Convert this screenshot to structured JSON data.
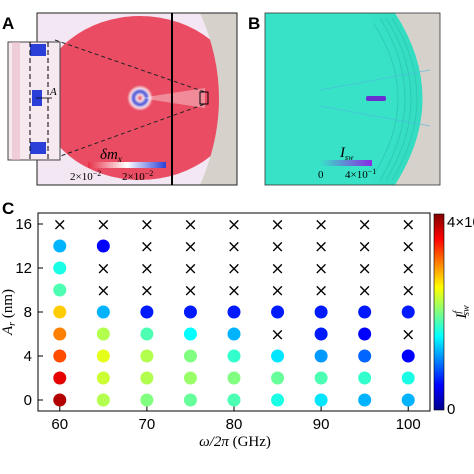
{
  "panels": {
    "a": {
      "label": "A",
      "inset_label": "A",
      "colorbar_title": "δm",
      "colorbar_title_sub": "x",
      "colorbar_min": "2×10",
      "colorbar_min_exp": "−2",
      "colorbar_max": "2×10",
      "colorbar_max_exp": "−2",
      "colors": {
        "negative": "#e8324a",
        "positive": "#2a3fd8",
        "background": "#f2e7f2",
        "dark": "#d6d2cb"
      }
    },
    "b": {
      "label": "B",
      "colorbar_title": "I",
      "colorbar_title_sub": "sw",
      "colorbar_min": "0",
      "colorbar_max": "4×10",
      "colorbar_max_exp": "−1",
      "colors": {
        "field": "#38e2c7",
        "beam": "#6a2fd0",
        "right": "#d6d2cb"
      }
    },
    "c": {
      "label": "C"
    }
  },
  "chart_data": {
    "type": "scatter",
    "xlabel_main": "ω/2π",
    "xlabel_unit": "(GHz)",
    "ylabel_sym": "A",
    "ylabel_sub": "r",
    "ylabel_unit": "(nm)",
    "x_ticks": [
      60,
      70,
      80,
      90,
      100
    ],
    "y_ticks": [
      0,
      4,
      8,
      12,
      16
    ],
    "xlim": [
      57.5,
      102.5
    ],
    "ylim": [
      -1,
      17
    ],
    "x_values": [
      60,
      65,
      70,
      75,
      80,
      85,
      90,
      95,
      100
    ],
    "y_values": [
      0,
      2,
      4,
      6,
      8,
      10,
      12,
      14,
      16
    ],
    "colorbar": {
      "label_sym": "I",
      "label_sub": "sw",
      "label_sup": "f",
      "min_label": "0",
      "max_label": "4×10",
      "min": 0,
      "max": 0.4
    },
    "marker_cross": "×",
    "rows": [
      {
        "y": 0,
        "values": [
          0.38,
          0.22,
          0.2,
          0.19,
          0.18,
          0.16,
          0.14,
          0.12,
          0.12
        ]
      },
      {
        "y": 2,
        "values": [
          0.36,
          0.23,
          0.22,
          0.21,
          0.2,
          0.19,
          0.18,
          0.17,
          0.16
        ]
      },
      {
        "y": 4,
        "values": [
          0.32,
          0.24,
          0.22,
          0.2,
          0.17,
          0.14,
          0.11,
          0.09,
          0.05
        ]
      },
      {
        "y": 6,
        "values": [
          0.3,
          0.22,
          0.18,
          0.15,
          0.12,
          null,
          0.06,
          0.05,
          null
        ]
      },
      {
        "y": 8,
        "values": [
          0.27,
          0.12,
          0.06,
          0.06,
          0.06,
          0.06,
          0.06,
          0.06,
          0.06
        ]
      },
      {
        "y": 10,
        "values": [
          0.18,
          null,
          null,
          null,
          null,
          null,
          null,
          null,
          null
        ]
      },
      {
        "y": 12,
        "values": [
          0.16,
          null,
          null,
          null,
          null,
          null,
          null,
          null,
          null
        ]
      },
      {
        "y": 14,
        "values": [
          0.12,
          0.05,
          null,
          null,
          null,
          null,
          null,
          null,
          null
        ]
      },
      {
        "y": 16,
        "values": [
          null,
          null,
          null,
          null,
          null,
          null,
          null,
          null,
          null
        ]
      }
    ]
  }
}
